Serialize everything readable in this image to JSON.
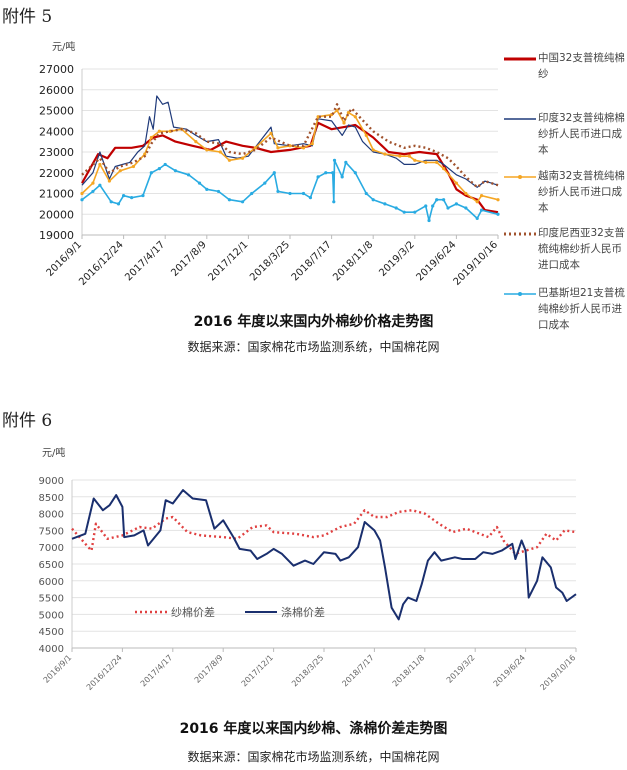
{
  "chart_data": [
    {
      "heading": "附件 5",
      "type": "line",
      "unit": "元/吨",
      "title": "2016 年度以来国内外棉纱价格走势图",
      "source": "数据来源：国家棉花市场监测系统，中国棉花网",
      "ylim": [
        19000,
        27000
      ],
      "yticks": [
        19000,
        20000,
        21000,
        22000,
        23000,
        24000,
        25000,
        26000,
        27000
      ],
      "grid": true,
      "legend": "right",
      "xlim": [
        "2016-09-01",
        "2019-10-16"
      ],
      "xticks": [
        "2016/9/1",
        "2016/12/24",
        "2017/4/17",
        "2017/8/9",
        "2017/12/1",
        "2018/3/25",
        "2018/7/17",
        "2018/11/8",
        "2019/3/2",
        "2019/6/24",
        "2019/10/16"
      ],
      "series": [
        {
          "name": "中国32支普梳纯棉纱",
          "color": "#c00000",
          "style": "solid",
          "x": [
            "2016-09-01",
            "2016-10-15",
            "2016-11-10",
            "2016-12-01",
            "2017-01-15",
            "2017-02-15",
            "2017-03-15",
            "2017-04-10",
            "2017-05-15",
            "2017-07-01",
            "2017-08-20",
            "2017-10-01",
            "2017-11-15",
            "2017-12-20",
            "2018-02-01",
            "2018-03-25",
            "2018-05-20",
            "2018-06-10",
            "2018-07-17",
            "2018-08-20",
            "2018-09-20",
            "2018-11-08",
            "2018-12-20",
            "2019-02-01",
            "2019-03-15",
            "2019-05-01",
            "2019-06-01",
            "2019-06-24",
            "2019-07-20",
            "2019-08-20",
            "2019-09-10",
            "2019-10-16"
          ],
          "y": [
            21500,
            22900,
            22700,
            23200,
            23200,
            23300,
            23700,
            23800,
            23500,
            23300,
            23100,
            23500,
            23300,
            23200,
            23000,
            23100,
            23300,
            24400,
            24100,
            24200,
            24300,
            23700,
            23000,
            22900,
            23000,
            22900,
            22000,
            21200,
            20900,
            20700,
            20200,
            20100
          ]
        },
        {
          "name": "印度32支普纯棉棉纱折人民币进口成本",
          "color": "#1f3a7a",
          "style": "thin",
          "x": [
            "2016-09-01",
            "2016-10-01",
            "2016-10-20",
            "2016-11-15",
            "2016-12-01",
            "2017-01-10",
            "2017-02-01",
            "2017-02-20",
            "2017-03-05",
            "2017-03-15",
            "2017-03-25",
            "2017-04-10",
            "2017-04-25",
            "2017-05-10",
            "2017-06-15",
            "2017-07-10",
            "2017-08-09",
            "2017-09-10",
            "2017-10-01",
            "2017-11-01",
            "2017-12-01",
            "2018-01-01",
            "2018-02-01",
            "2018-02-10",
            "2018-03-25",
            "2018-05-01",
            "2018-05-25",
            "2018-06-10",
            "2018-07-17",
            "2018-08-15",
            "2018-09-01",
            "2018-09-20",
            "2018-10-10",
            "2018-11-08",
            "2018-12-10",
            "2019-01-10",
            "2019-02-01",
            "2019-03-02",
            "2019-04-01",
            "2019-05-01",
            "2019-05-20",
            "2019-06-24",
            "2019-07-20",
            "2019-08-20",
            "2019-09-10",
            "2019-10-16"
          ],
          "y": [
            21400,
            22000,
            23000,
            21700,
            22300,
            22500,
            23000,
            23300,
            24700,
            24100,
            25700,
            25300,
            25400,
            24200,
            24100,
            23800,
            23500,
            23600,
            22800,
            22700,
            22800,
            23500,
            24200,
            23400,
            23300,
            23400,
            23300,
            24600,
            24500,
            23800,
            24300,
            24200,
            23500,
            23000,
            22900,
            22700,
            22400,
            22400,
            22600,
            22600,
            22400,
            21900,
            21700,
            21300,
            21600,
            21400
          ]
        },
        {
          "name": "越南32支普梳纯棉纱折人民币进口成本",
          "color": "#f5a623",
          "style": "marker",
          "x": [
            "2016-09-01",
            "2016-10-01",
            "2016-10-20",
            "2016-11-15",
            "2016-12-15",
            "2017-01-20",
            "2017-02-20",
            "2017-03-10",
            "2017-04-01",
            "2017-05-01",
            "2017-06-01",
            "2017-07-10",
            "2017-08-09",
            "2017-09-15",
            "2017-10-10",
            "2017-11-15",
            "2017-12-20",
            "2018-02-01",
            "2018-02-20",
            "2018-03-25",
            "2018-05-01",
            "2018-05-25",
            "2018-06-10",
            "2018-07-17",
            "2018-08-01",
            "2018-08-20",
            "2018-09-01",
            "2018-09-20",
            "2018-10-20",
            "2018-11-08",
            "2018-12-10",
            "2019-01-20",
            "2019-02-15",
            "2019-03-02",
            "2019-04-01",
            "2019-05-01",
            "2019-05-20",
            "2019-06-24",
            "2019-07-20",
            "2019-08-20",
            "2019-09-01",
            "2019-10-16"
          ],
          "y": [
            21000,
            21500,
            22400,
            21600,
            22100,
            22300,
            22900,
            23700,
            24000,
            24000,
            24100,
            23500,
            23100,
            23000,
            22600,
            22700,
            23200,
            23900,
            23200,
            23300,
            23200,
            23400,
            24700,
            24800,
            25000,
            24400,
            24900,
            24700,
            23800,
            23100,
            22900,
            22800,
            22800,
            22600,
            22500,
            22500,
            22200,
            21500,
            21000,
            20600,
            20900,
            20700
          ]
        },
        {
          "name": "印度尼西亚32支普梳纯棉纱折人民币进口成本",
          "color": "#a0522d",
          "style": "dotted",
          "x": [
            "2016-09-01",
            "2016-10-20",
            "2016-11-15",
            "2016-12-15",
            "2017-01-20",
            "2017-02-20",
            "2017-03-10",
            "2017-04-01",
            "2017-05-01",
            "2017-06-01",
            "2017-07-10",
            "2017-08-09",
            "2017-09-15",
            "2017-10-10",
            "2017-11-15",
            "2017-12-20",
            "2018-02-01",
            "2018-03-25",
            "2018-05-01",
            "2018-06-10",
            "2018-07-17",
            "2018-08-01",
            "2018-08-20",
            "2018-09-10",
            "2018-10-01",
            "2018-11-08",
            "2018-12-20",
            "2019-02-01",
            "2019-03-02",
            "2019-04-01",
            "2019-05-01",
            "2019-06-01",
            "2019-06-24",
            "2019-07-20",
            "2019-08-20",
            "2019-09-10",
            "2019-10-16"
          ],
          "y": [
            21900,
            22700,
            22000,
            22300,
            22500,
            22800,
            23400,
            23900,
            24000,
            24100,
            23900,
            23500,
            23400,
            23000,
            22900,
            23100,
            23700,
            23300,
            23300,
            24700,
            24700,
            25300,
            24500,
            25100,
            24700,
            24000,
            23500,
            23200,
            23300,
            23200,
            23000,
            22700,
            22300,
            21800,
            21300,
            21600,
            21400
          ]
        },
        {
          "name": "巴基斯坦21支普梳纯棉纱折人民币进口成本",
          "color": "#29abe2",
          "style": "marker",
          "x": [
            "2016-09-01",
            "2016-10-01",
            "2016-10-20",
            "2016-11-20",
            "2016-12-10",
            "2016-12-24",
            "2017-01-15",
            "2017-02-15",
            "2017-03-10",
            "2017-04-01",
            "2017-04-17",
            "2017-05-15",
            "2017-06-20",
            "2017-07-20",
            "2017-08-09",
            "2017-09-10",
            "2017-10-10",
            "2017-11-15",
            "2017-12-10",
            "2018-01-15",
            "2018-02-10",
            "2018-02-20",
            "2018-03-25",
            "2018-05-01",
            "2018-05-20",
            "2018-06-10",
            "2018-07-01",
            "2018-07-20",
            "2018-07-23",
            "2018-07-25",
            "2018-08-15",
            "2018-08-25",
            "2018-09-20",
            "2018-10-20",
            "2018-11-08",
            "2018-12-10",
            "2019-01-10",
            "2019-02-01",
            "2019-03-02",
            "2019-04-01",
            "2019-04-10",
            "2019-04-20",
            "2019-05-01",
            "2019-05-20",
            "2019-06-01",
            "2019-06-24",
            "2019-07-20",
            "2019-08-20",
            "2019-09-01",
            "2019-10-16"
          ],
          "y": [
            20700,
            21100,
            21400,
            20600,
            20500,
            20900,
            20800,
            20900,
            22000,
            22200,
            22400,
            22100,
            21900,
            21500,
            21200,
            21100,
            20700,
            20600,
            21000,
            21500,
            22000,
            21100,
            21000,
            21000,
            20800,
            21800,
            22000,
            22000,
            20600,
            22600,
            21800,
            22500,
            22000,
            21000,
            20700,
            20500,
            20300,
            20100,
            20100,
            20400,
            19700,
            20400,
            20700,
            20700,
            20300,
            20500,
            20300,
            19800,
            20200,
            20000
          ]
        }
      ]
    },
    {
      "heading": "附件 6",
      "type": "line",
      "unit": "元/吨",
      "title": "2016 年度以来国内纱棉、涤棉价差走势图",
      "source": "数据来源：国家棉花市场监测系统，中国棉花网",
      "ylim": [
        4000,
        9000
      ],
      "yticks": [
        4000,
        4500,
        5000,
        5500,
        6000,
        6500,
        7000,
        7500,
        8000,
        8500,
        9000
      ],
      "grid": true,
      "legend": "inside-bottom-left",
      "xlim": [
        "2016-09-01",
        "2019-10-16"
      ],
      "xticks": [
        "2016/9/1",
        "2016/12/24",
        "2017/4/17",
        "2017/8/9",
        "2017/12/1",
        "2018/3/25",
        "2018/7/17",
        "2018/11/8",
        "2019/3/2",
        "2019/6/24",
        "2019/10/16"
      ],
      "series": [
        {
          "name": "纱棉价差",
          "color": "#e04040",
          "style": "dotted",
          "x": [
            "2016-09-01",
            "2016-10-01",
            "2016-10-15",
            "2016-10-25",
            "2016-11-20",
            "2016-12-24",
            "2017-02-01",
            "2017-03-01",
            "2017-04-01",
            "2017-04-17",
            "2017-05-20",
            "2017-06-20",
            "2017-08-09",
            "2017-09-10",
            "2017-10-15",
            "2017-11-15",
            "2017-12-01",
            "2018-01-20",
            "2018-03-01",
            "2018-03-25",
            "2018-05-01",
            "2018-06-01",
            "2018-06-25",
            "2018-07-17",
            "2018-08-15",
            "2018-09-10",
            "2018-10-10",
            "2018-11-08",
            "2018-12-10",
            "2019-01-10",
            "2019-02-10",
            "2019-03-02",
            "2019-04-01",
            "2019-04-20",
            "2019-05-05",
            "2019-06-01",
            "2019-06-24",
            "2019-07-20",
            "2019-08-10",
            "2019-09-01",
            "2019-09-20",
            "2019-10-16"
          ],
          "y": [
            7550,
            7100,
            6900,
            7700,
            7250,
            7350,
            7600,
            7550,
            7850,
            7900,
            7450,
            7350,
            7300,
            7250,
            7600,
            7650,
            7450,
            7400,
            7300,
            7350,
            7600,
            7700,
            8100,
            7900,
            7900,
            8050,
            8100,
            8000,
            7700,
            7450,
            7550,
            7450,
            7300,
            7600,
            7200,
            6800,
            6900,
            7000,
            7400,
            7200,
            7500,
            7450
          ]
        },
        {
          "name": "涤棉价差",
          "color": "#1a2f6e",
          "style": "solid",
          "x": [
            "2016-09-01",
            "2016-10-01",
            "2016-10-20",
            "2016-11-10",
            "2016-11-25",
            "2016-12-10",
            "2016-12-24",
            "2016-12-28",
            "2017-01-20",
            "2017-02-10",
            "2017-02-20",
            "2017-03-20",
            "2017-04-01",
            "2017-04-17",
            "2017-05-10",
            "2017-06-01",
            "2017-07-01",
            "2017-07-20",
            "2017-08-09",
            "2017-09-01",
            "2017-09-15",
            "2017-10-10",
            "2017-10-25",
            "2017-11-15",
            "2017-12-01",
            "2017-12-20",
            "2018-01-15",
            "2018-02-10",
            "2018-03-01",
            "2018-03-25",
            "2018-04-20",
            "2018-05-01",
            "2018-05-20",
            "2018-06-10",
            "2018-06-25",
            "2018-07-17",
            "2018-07-30",
            "2018-08-10",
            "2018-08-25",
            "2018-09-10",
            "2018-09-20",
            "2018-10-01",
            "2018-10-20",
            "2018-11-01",
            "2018-11-15",
            "2018-11-30",
            "2018-12-15",
            "2019-01-15",
            "2019-02-01",
            "2019-03-02",
            "2019-03-20",
            "2019-04-10",
            "2019-05-01",
            "2019-05-25",
            "2019-06-01",
            "2019-06-15",
            "2019-06-24",
            "2019-07-01",
            "2019-07-20",
            "2019-08-01",
            "2019-08-20",
            "2019-09-01",
            "2019-09-15",
            "2019-09-25",
            "2019-10-16"
          ],
          "y": [
            7250,
            7400,
            8450,
            8100,
            8250,
            8550,
            8200,
            7300,
            7350,
            7500,
            7050,
            7500,
            8400,
            8300,
            8700,
            8450,
            8400,
            7550,
            7800,
            7300,
            6950,
            6900,
            6650,
            6800,
            6950,
            6800,
            6450,
            6600,
            6500,
            6850,
            6800,
            6600,
            6700,
            7000,
            7750,
            7500,
            7200,
            6400,
            5200,
            4850,
            5300,
            5500,
            5400,
            5900,
            6600,
            6850,
            6600,
            6700,
            6650,
            6650,
            6850,
            6800,
            6900,
            7100,
            6650,
            7200,
            6900,
            5500,
            6000,
            6700,
            6400,
            5800,
            5650,
            5400,
            5600
          ]
        }
      ]
    }
  ]
}
